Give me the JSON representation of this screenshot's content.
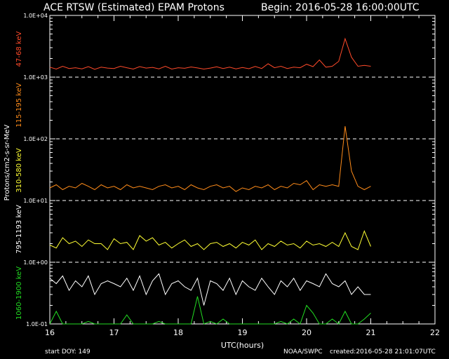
{
  "header": {
    "title": "ACE RTSW (Estimated) EPAM Protons",
    "begin": "Begin: 2016-05-28 16:00:00UTC"
  },
  "footer": {
    "start_doy": "start DOY:  149",
    "source": "NOAA/SWPC",
    "created": "created:2016-05-28 21:01:07UTC"
  },
  "colors": {
    "ch1": "#ff4a2a",
    "ch2": "#ff8c1a",
    "ch3": "#ffff33",
    "ch4": "#ffffff",
    "ch5": "#22dd22"
  },
  "chart_data": {
    "type": "line",
    "xlabel": "UTC(hours)",
    "ylabel": "Protons/cm2-s-sr-MeV",
    "xlim": [
      16,
      22
    ],
    "ylim": [
      0.1,
      10000
    ],
    "y_scale": "log",
    "x_ticks": [
      "16",
      "17",
      "18",
      "19",
      "20",
      "21",
      "22"
    ],
    "y_ticks": [
      "1.0E-01",
      "1.0E+00",
      "1.0E+01",
      "1.0E+02",
      "1.0E+03",
      "1.0E+04"
    ],
    "dashed_gridlines_y": [
      1,
      10,
      100,
      1000
    ],
    "series": [
      {
        "name": "47-68 keV",
        "color": "#ff4a2a",
        "x": [
          16.0,
          16.1,
          16.2,
          16.3,
          16.4,
          16.5,
          16.6,
          16.7,
          16.8,
          16.9,
          17.0,
          17.1,
          17.2,
          17.3,
          17.4,
          17.5,
          17.6,
          17.7,
          17.8,
          17.9,
          18.0,
          18.1,
          18.2,
          18.3,
          18.4,
          18.5,
          18.6,
          18.7,
          18.8,
          18.9,
          19.0,
          19.1,
          19.2,
          19.3,
          19.4,
          19.5,
          19.6,
          19.7,
          19.8,
          19.9,
          20.0,
          20.1,
          20.2,
          20.3,
          20.4,
          20.5,
          20.6,
          20.7,
          20.8,
          20.9,
          21.0
        ],
        "y": [
          1450,
          1350,
          1500,
          1380,
          1420,
          1360,
          1480,
          1340,
          1450,
          1400,
          1380,
          1500,
          1420,
          1350,
          1480,
          1400,
          1440,
          1360,
          1500,
          1350,
          1420,
          1390,
          1460,
          1410,
          1350,
          1400,
          1470,
          1380,
          1450,
          1360,
          1430,
          1370,
          1490,
          1380,
          1650,
          1420,
          1500,
          1380,
          1450,
          1420,
          1620,
          1480,
          1900,
          1450,
          1500,
          1800,
          4200,
          2100,
          1500,
          1550,
          1500
        ]
      },
      {
        "name": "115-195 keV",
        "color": "#ff8c1a",
        "x": [
          16.0,
          16.1,
          16.2,
          16.3,
          16.4,
          16.5,
          16.6,
          16.7,
          16.8,
          16.9,
          17.0,
          17.1,
          17.2,
          17.3,
          17.4,
          17.5,
          17.6,
          17.7,
          17.8,
          17.9,
          18.0,
          18.1,
          18.2,
          18.3,
          18.4,
          18.5,
          18.6,
          18.7,
          18.8,
          18.9,
          19.0,
          19.1,
          19.2,
          19.3,
          19.4,
          19.5,
          19.6,
          19.7,
          19.8,
          19.9,
          20.0,
          20.1,
          20.2,
          20.3,
          20.4,
          20.5,
          20.6,
          20.7,
          20.8,
          20.9,
          21.0
        ],
        "y": [
          16,
          18,
          15,
          17,
          16,
          19,
          17,
          15,
          18,
          16,
          17,
          15,
          18,
          16,
          17,
          16,
          15,
          17,
          18,
          16,
          17,
          15,
          18,
          16,
          15,
          17,
          18,
          16,
          17,
          14,
          16,
          15,
          17,
          16,
          18,
          15,
          17,
          16,
          19,
          18,
          21,
          15,
          18,
          17,
          18,
          17,
          160,
          30,
          17,
          15,
          17
        ]
      },
      {
        "name": "310-580 keV",
        "color": "#ffff33",
        "x": [
          16.0,
          16.1,
          16.2,
          16.3,
          16.4,
          16.5,
          16.6,
          16.7,
          16.8,
          16.9,
          17.0,
          17.1,
          17.2,
          17.3,
          17.4,
          17.5,
          17.6,
          17.7,
          17.8,
          17.9,
          18.0,
          18.1,
          18.2,
          18.3,
          18.4,
          18.5,
          18.6,
          18.7,
          18.8,
          18.9,
          19.0,
          19.1,
          19.2,
          19.3,
          19.4,
          19.5,
          19.6,
          19.7,
          19.8,
          19.9,
          20.0,
          20.1,
          20.2,
          20.3,
          20.4,
          20.5,
          20.6,
          20.7,
          20.8,
          20.9,
          21.0
        ],
        "y": [
          1.9,
          1.7,
          2.5,
          2.0,
          2.2,
          1.8,
          2.3,
          2.0,
          2.0,
          1.6,
          2.4,
          2.0,
          2.1,
          1.6,
          2.7,
          2.2,
          2.5,
          1.9,
          2.1,
          1.7,
          2.0,
          2.3,
          1.8,
          2.0,
          1.6,
          2.0,
          2.1,
          1.8,
          2.0,
          1.7,
          2.1,
          1.9,
          2.3,
          1.6,
          2.0,
          1.8,
          2.2,
          1.9,
          2.0,
          1.7,
          2.2,
          1.9,
          2.0,
          1.8,
          2.1,
          1.8,
          3.0,
          1.8,
          1.6,
          3.2,
          1.8
        ]
      },
      {
        "name": "795-1193 keV",
        "color": "#ffffff",
        "x": [
          16.0,
          16.1,
          16.2,
          16.3,
          16.4,
          16.5,
          16.6,
          16.7,
          16.8,
          16.9,
          17.0,
          17.1,
          17.2,
          17.3,
          17.4,
          17.5,
          17.6,
          17.7,
          17.8,
          17.9,
          18.0,
          18.1,
          18.2,
          18.3,
          18.4,
          18.5,
          18.6,
          18.7,
          18.8,
          18.9,
          19.0,
          19.1,
          19.2,
          19.3,
          19.4,
          19.5,
          19.6,
          19.7,
          19.8,
          19.9,
          20.0,
          20.1,
          20.2,
          20.3,
          20.4,
          20.5,
          20.6,
          20.7,
          20.8,
          20.9,
          21.0
        ],
        "y": [
          0.55,
          0.45,
          0.6,
          0.35,
          0.5,
          0.4,
          0.6,
          0.3,
          0.45,
          0.5,
          0.45,
          0.4,
          0.55,
          0.35,
          0.6,
          0.3,
          0.5,
          0.65,
          0.3,
          0.45,
          0.5,
          0.4,
          0.35,
          0.55,
          0.2,
          0.5,
          0.45,
          0.35,
          0.55,
          0.3,
          0.5,
          0.4,
          0.35,
          0.55,
          0.4,
          0.3,
          0.5,
          0.4,
          0.55,
          0.35,
          0.5,
          0.45,
          0.4,
          0.65,
          0.45,
          0.4,
          0.5,
          0.3,
          0.4,
          0.3,
          0.3
        ]
      },
      {
        "name": "1060-1900 keV",
        "color": "#22dd22",
        "x": [
          16.0,
          16.1,
          16.2,
          16.3,
          16.4,
          16.5,
          16.6,
          16.7,
          16.8,
          16.9,
          17.0,
          17.1,
          17.2,
          17.3,
          17.4,
          17.5,
          17.6,
          17.7,
          17.8,
          17.9,
          18.0,
          18.1,
          18.2,
          18.3,
          18.4,
          18.5,
          18.6,
          18.7,
          18.8,
          18.9,
          19.0,
          19.1,
          19.2,
          19.3,
          19.4,
          19.5,
          19.6,
          19.7,
          19.8,
          19.9,
          20.0,
          20.1,
          20.2,
          20.3,
          20.4,
          20.5,
          20.6,
          20.7,
          20.8,
          20.9,
          21.0
        ],
        "y": [
          0.09,
          0.16,
          0.08,
          0.09,
          0.1,
          0.08,
          0.11,
          0.09,
          0.08,
          0.1,
          0.09,
          0.08,
          0.14,
          0.09,
          0.1,
          0.08,
          0.09,
          0.11,
          0.08,
          0.09,
          0.1,
          0.08,
          0.09,
          0.28,
          0.08,
          0.11,
          0.09,
          0.12,
          0.08,
          0.09,
          0.1,
          0.08,
          0.09,
          0.1,
          0.08,
          0.09,
          0.11,
          0.08,
          0.12,
          0.09,
          0.2,
          0.15,
          0.09,
          0.1,
          0.12,
          0.09,
          0.16,
          0.08,
          0.09,
          0.12,
          0.15
        ]
      }
    ]
  }
}
